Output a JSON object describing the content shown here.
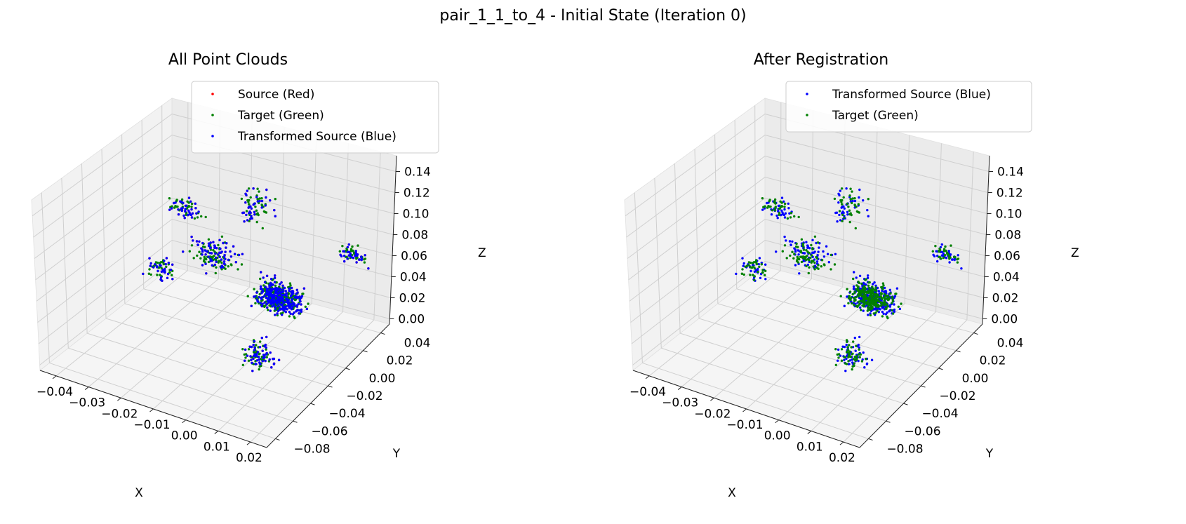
{
  "figure": {
    "title": "pair_1_1_to_4 - Initial State (Iteration 0)"
  },
  "colors": {
    "source": "#ff0000",
    "target": "#008000",
    "transformed": "#0000ff",
    "pane_side": "#f2f2f2",
    "pane_back": "#ebebeb",
    "pane_floor": "#f5f5f5",
    "grid": "#cfcfcf"
  },
  "chart_data": [
    {
      "type": "scatter",
      "projection": "3d",
      "title": "All Point Clouds",
      "xlabel": "X",
      "ylabel": "Y",
      "zlabel": "Z",
      "xticks": [
        "−0.04",
        "−0.03",
        "−0.02",
        "−0.01",
        "0.00",
        "0.01",
        "0.02"
      ],
      "xtick_values": [
        -0.04,
        -0.03,
        -0.02,
        -0.01,
        0.0,
        0.01,
        0.02
      ],
      "yticks": [
        "−0.08",
        "−0.06",
        "−0.04",
        "−0.02",
        "0.00",
        "0.02",
        "0.04"
      ],
      "ytick_values": [
        -0.08,
        -0.06,
        -0.04,
        -0.02,
        0.0,
        0.02,
        0.04
      ],
      "zticks": [
        "0.00",
        "0.02",
        "0.04",
        "0.06",
        "0.08",
        "0.10",
        "0.12",
        "0.14"
      ],
      "ztick_values": [
        0.0,
        0.02,
        0.04,
        0.06,
        0.08,
        0.1,
        0.12,
        0.14
      ],
      "xlim": [
        -0.045,
        0.025
      ],
      "ylim": [
        -0.09,
        0.05
      ],
      "zlim": [
        -0.005,
        0.155
      ],
      "grid": true,
      "legend_position": "top-right",
      "series": [
        {
          "name": "Source (Red)",
          "color_key": "source",
          "seed": 11,
          "shift": [
            0,
            0,
            0
          ]
        },
        {
          "name": "Target (Green)",
          "color_key": "target",
          "seed": 23,
          "shift": [
            0,
            0,
            0
          ]
        },
        {
          "name": "Transformed Source (Blue)",
          "color_key": "transformed",
          "seed": 11,
          "shift": [
            0,
            0,
            0
          ]
        }
      ]
    },
    {
      "type": "scatter",
      "projection": "3d",
      "title": "After Registration",
      "xlabel": "X",
      "ylabel": "Y",
      "zlabel": "Z",
      "xticks": [
        "−0.04",
        "−0.03",
        "−0.02",
        "−0.01",
        "0.00",
        "0.01",
        "0.02"
      ],
      "xtick_values": [
        -0.04,
        -0.03,
        -0.02,
        -0.01,
        0.0,
        0.01,
        0.02
      ],
      "yticks": [
        "−0.08",
        "−0.06",
        "−0.04",
        "−0.02",
        "0.00",
        "0.02",
        "0.04"
      ],
      "ytick_values": [
        -0.08,
        -0.06,
        -0.04,
        -0.02,
        0.0,
        0.02,
        0.04
      ],
      "zticks": [
        "0.00",
        "0.02",
        "0.04",
        "0.06",
        "0.08",
        "0.10",
        "0.12",
        "0.14"
      ],
      "ztick_values": [
        0.0,
        0.02,
        0.04,
        0.06,
        0.08,
        0.1,
        0.12,
        0.14
      ],
      "xlim": [
        -0.045,
        0.025
      ],
      "ylim": [
        -0.09,
        0.05
      ],
      "zlim": [
        -0.005,
        0.155
      ],
      "grid": true,
      "legend_position": "top-right",
      "series": [
        {
          "name": "Transformed Source (Blue)",
          "color_key": "transformed",
          "seed": 11,
          "shift": [
            0,
            0,
            0
          ]
        },
        {
          "name": "Target (Green)",
          "color_key": "target",
          "seed": 23,
          "shift": [
            0,
            0,
            0
          ]
        }
      ]
    }
  ]
}
